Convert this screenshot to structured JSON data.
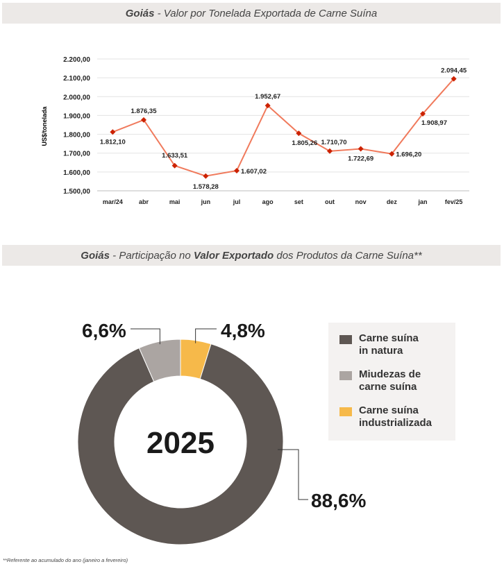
{
  "line_section": {
    "title_bold": "Goiás",
    "title_rest": " - Valor por Tonelada Exportada de Carne Suína"
  },
  "donut_section": {
    "title_bold": "Goiás",
    "title_mid": " - Participação no ",
    "title_bold2": "Valor Exportado",
    "title_end": " dos Produtos da Carne Suína**",
    "center_label": "2025",
    "legend": [
      {
        "label_line1": "Carne suína",
        "label_line2": "in natura",
        "color": "#5e5753"
      },
      {
        "label_line1": "Miudezas de",
        "label_line2": "carne suína",
        "color": "#aba5a2"
      },
      {
        "label_line1": "Carne suína",
        "label_line2": "industrializada",
        "color": "#f6b94a"
      }
    ]
  },
  "footnote": "**Referente ao acumulado do ano (janeiro a fevereiro)",
  "chart_data": [
    {
      "type": "line",
      "ylabel": "US$/tonelada",
      "ylim": [
        1500,
        2200
      ],
      "yticks": [
        "1.500,00",
        "1.600,00",
        "1.700,00",
        "1.800,00",
        "1.900,00",
        "2.000,00",
        "2.100,00",
        "2.200,00"
      ],
      "grid": true,
      "categories": [
        "mar/24",
        "abr",
        "mai",
        "jun",
        "jul",
        "ago",
        "set",
        "out",
        "nov",
        "dez",
        "jan",
        "fev/25"
      ],
      "series": [
        {
          "values": [
            1812.1,
            1876.35,
            1633.51,
            1578.28,
            1607.02,
            1952.67,
            1805.26,
            1710.7,
            1722.69,
            1696.2,
            1908.97,
            2094.45
          ],
          "labels": [
            "1.812,10",
            "1.876,35",
            "1.633,51",
            "1.578,28",
            "1.607,02",
            "1.952,67",
            "1.805,26",
            "1.710,70",
            "1.722,69",
            "1.696,20",
            "1.908,97",
            "2.094,45"
          ],
          "line_color": "#f07a5c",
          "marker_color": "#cc2200"
        }
      ]
    },
    {
      "type": "pie",
      "donut": true,
      "categories": [
        "Carne suína in natura",
        "Miudezas de carne suína",
        "Carne suína industrializada"
      ],
      "values": [
        88.6,
        6.6,
        4.8
      ],
      "labels": [
        "88,6%",
        "6,6%",
        "4,8%"
      ],
      "colors": [
        "#5e5753",
        "#aba5a2",
        "#f6b94a"
      ],
      "center_text": "2025"
    }
  ]
}
